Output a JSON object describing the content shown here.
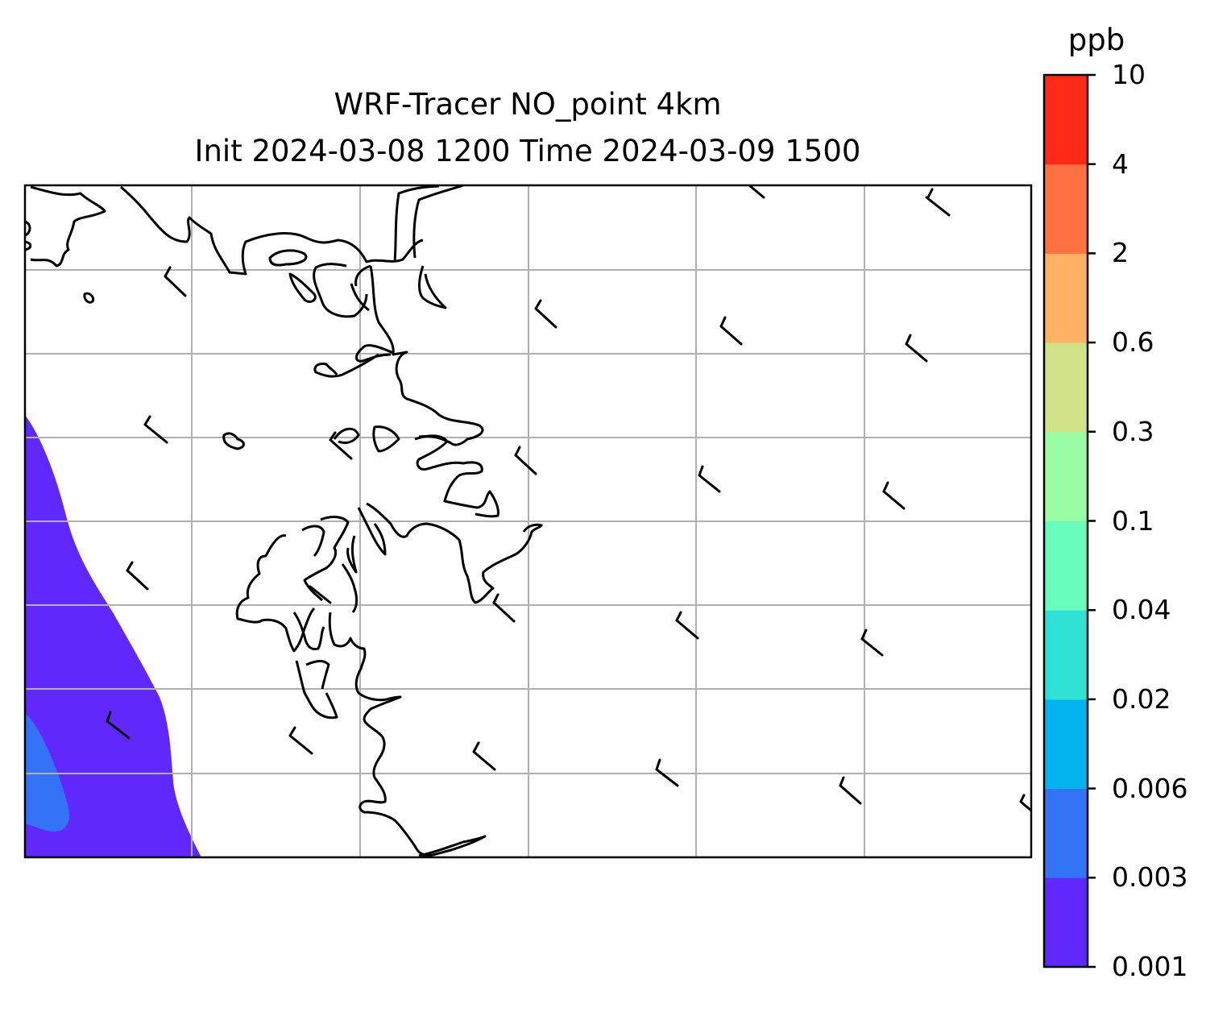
{
  "title": {
    "line1": "WRF-Tracer NO_point 4km",
    "line2": "Init 2024-03-08 1200 Time 2024-03-09 1500"
  },
  "colorbar": {
    "unit": "ppb",
    "levels": [
      "0.001",
      "0.003",
      "0.006",
      "0.02",
      "0.04",
      "0.1",
      "0.3",
      "0.6",
      "2",
      "4",
      "10"
    ],
    "colors": [
      "#6128fe",
      "#3473f6",
      "#03b3ed",
      "#2fe0d5",
      "#67fcbc",
      "#9bfda3",
      "#cfe287",
      "#ffb264",
      "#ff7141",
      "#ff2a15"
    ]
  },
  "map": {
    "gridlines": true,
    "gridline_color": "#b0b0b0",
    "coastline_color": "#000000",
    "tracer_plume": {
      "location": "left (west) edge",
      "levels_present": [
        "0.001",
        "0.003"
      ]
    },
    "wind_barbs": {
      "style": "short barbs, light winds",
      "columns": 5,
      "rows": 4
    }
  }
}
